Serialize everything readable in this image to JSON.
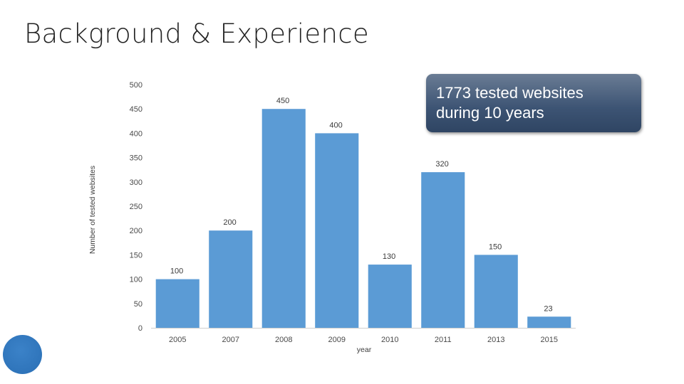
{
  "slide": {
    "title": "Background & Experience",
    "callout_line1": "1773 tested websites",
    "callout_line2": "during 10 years"
  },
  "colors": {
    "bar": "#5b9bd5",
    "callout": "#3d5474",
    "accent_circle": "#2e75b6"
  },
  "chart_data": {
    "type": "bar",
    "categories": [
      "2005",
      "2007",
      "2008",
      "2009",
      "2010",
      "2011",
      "2013",
      "2015"
    ],
    "values": [
      100,
      200,
      450,
      400,
      130,
      320,
      150,
      23
    ],
    "xlabel": "year",
    "ylabel": "Number of tested websites",
    "ylim": [
      0,
      500
    ],
    "yticks": [
      0,
      50,
      100,
      150,
      200,
      250,
      300,
      350,
      400,
      450,
      500
    ],
    "grid": false,
    "data_labels": true
  }
}
